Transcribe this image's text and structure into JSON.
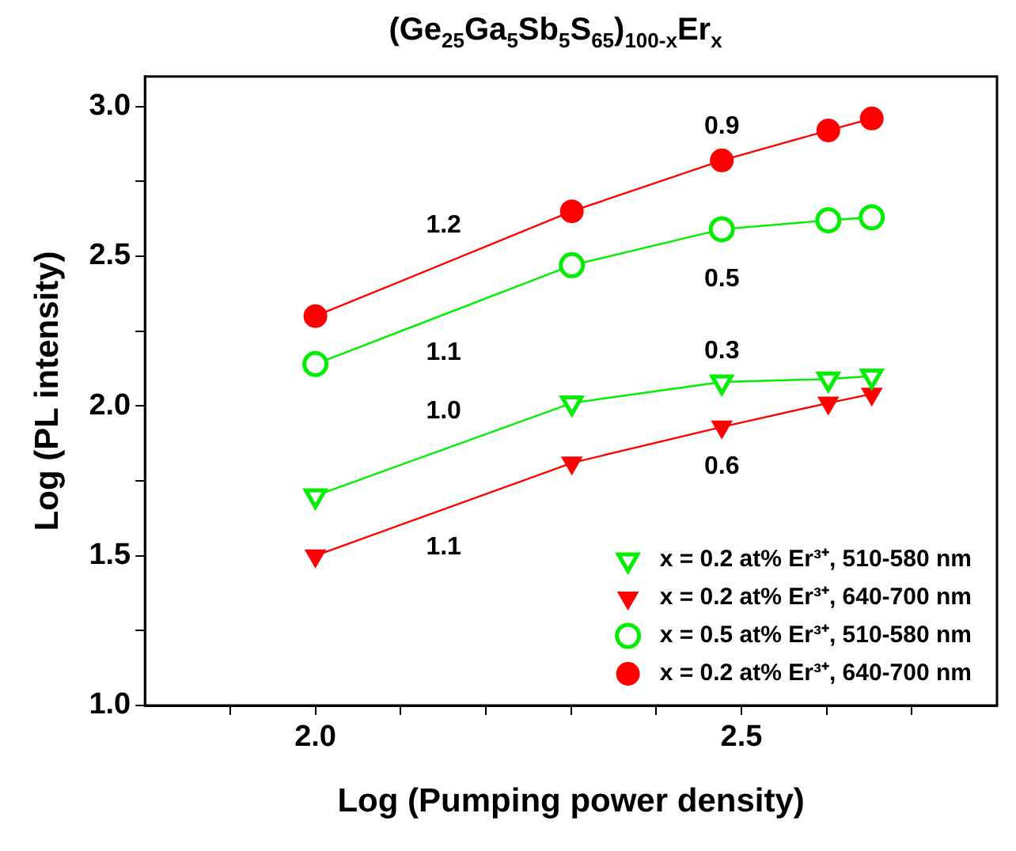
{
  "chart_data": {
    "type": "line",
    "title": "(Ge$_{25}$Ga$_{5}$Sb$_{5}$S$_{65}$)$_{100-x}$Er$_{x}$",
    "xlabel": "Log (Pumping power density)",
    "ylabel": "Log (PL intensity)",
    "x": [
      2.0,
      2.301,
      2.477,
      2.602,
      2.653
    ],
    "series": [
      {
        "name": "x = 0.2 at% Er³⁺, 510-580 nm",
        "color": "#00ee00",
        "marker": "triangle-open",
        "values": [
          1.7,
          2.01,
          2.08,
          2.09,
          2.1
        ]
      },
      {
        "name": "x = 0.2 at% Er³⁺, 640-700 nm",
        "color": "#ff0000",
        "marker": "triangle",
        "values": [
          1.5,
          1.81,
          1.93,
          2.01,
          2.04
        ]
      },
      {
        "name": "x = 0.5 at% Er³⁺, 510-580 nm",
        "color": "#00ee00",
        "marker": "circle-open",
        "values": [
          2.14,
          2.47,
          2.59,
          2.62,
          2.63
        ]
      },
      {
        "name": "x = 0.2 at% Er³⁺, 640-700 nm",
        "color": "#ff0000",
        "marker": "circle",
        "values": [
          2.3,
          2.65,
          2.82,
          2.92,
          2.96
        ]
      }
    ],
    "xlim": [
      1.8,
      2.8
    ],
    "xticks": [
      {
        "value": 1.9,
        "label": null
      },
      {
        "value": 2,
        "label": "2.0"
      },
      {
        "value": 2.1,
        "label": null
      },
      {
        "value": 2.2,
        "label": null
      },
      {
        "value": 2.3,
        "label": null
      },
      {
        "value": 2.4,
        "label": null
      },
      2.5,
      {
        "value": 2.6,
        "label": null
      },
      {
        "value": 2.7,
        "label": null
      }
    ],
    "ylim": [
      1.0,
      3.1
    ],
    "yticks": [
      {
        "value": 1,
        "label": "1.0"
      },
      {
        "value": 1.25,
        "label": null
      },
      1.5,
      {
        "value": 1.75,
        "label": null
      },
      {
        "value": 2,
        "label": "2.0"
      },
      {
        "value": 2.25,
        "label": null
      },
      2.5,
      {
        "value": 2.75,
        "label": null
      },
      {
        "value": 3,
        "label": "3.0"
      }
    ],
    "annotations": [
      "1.2",
      "1.1",
      "1.0",
      "1.1",
      "0.9",
      "0.5",
      "0.3",
      "0.6"
    ],
    "grid": false,
    "legend": "bottom right"
  }
}
